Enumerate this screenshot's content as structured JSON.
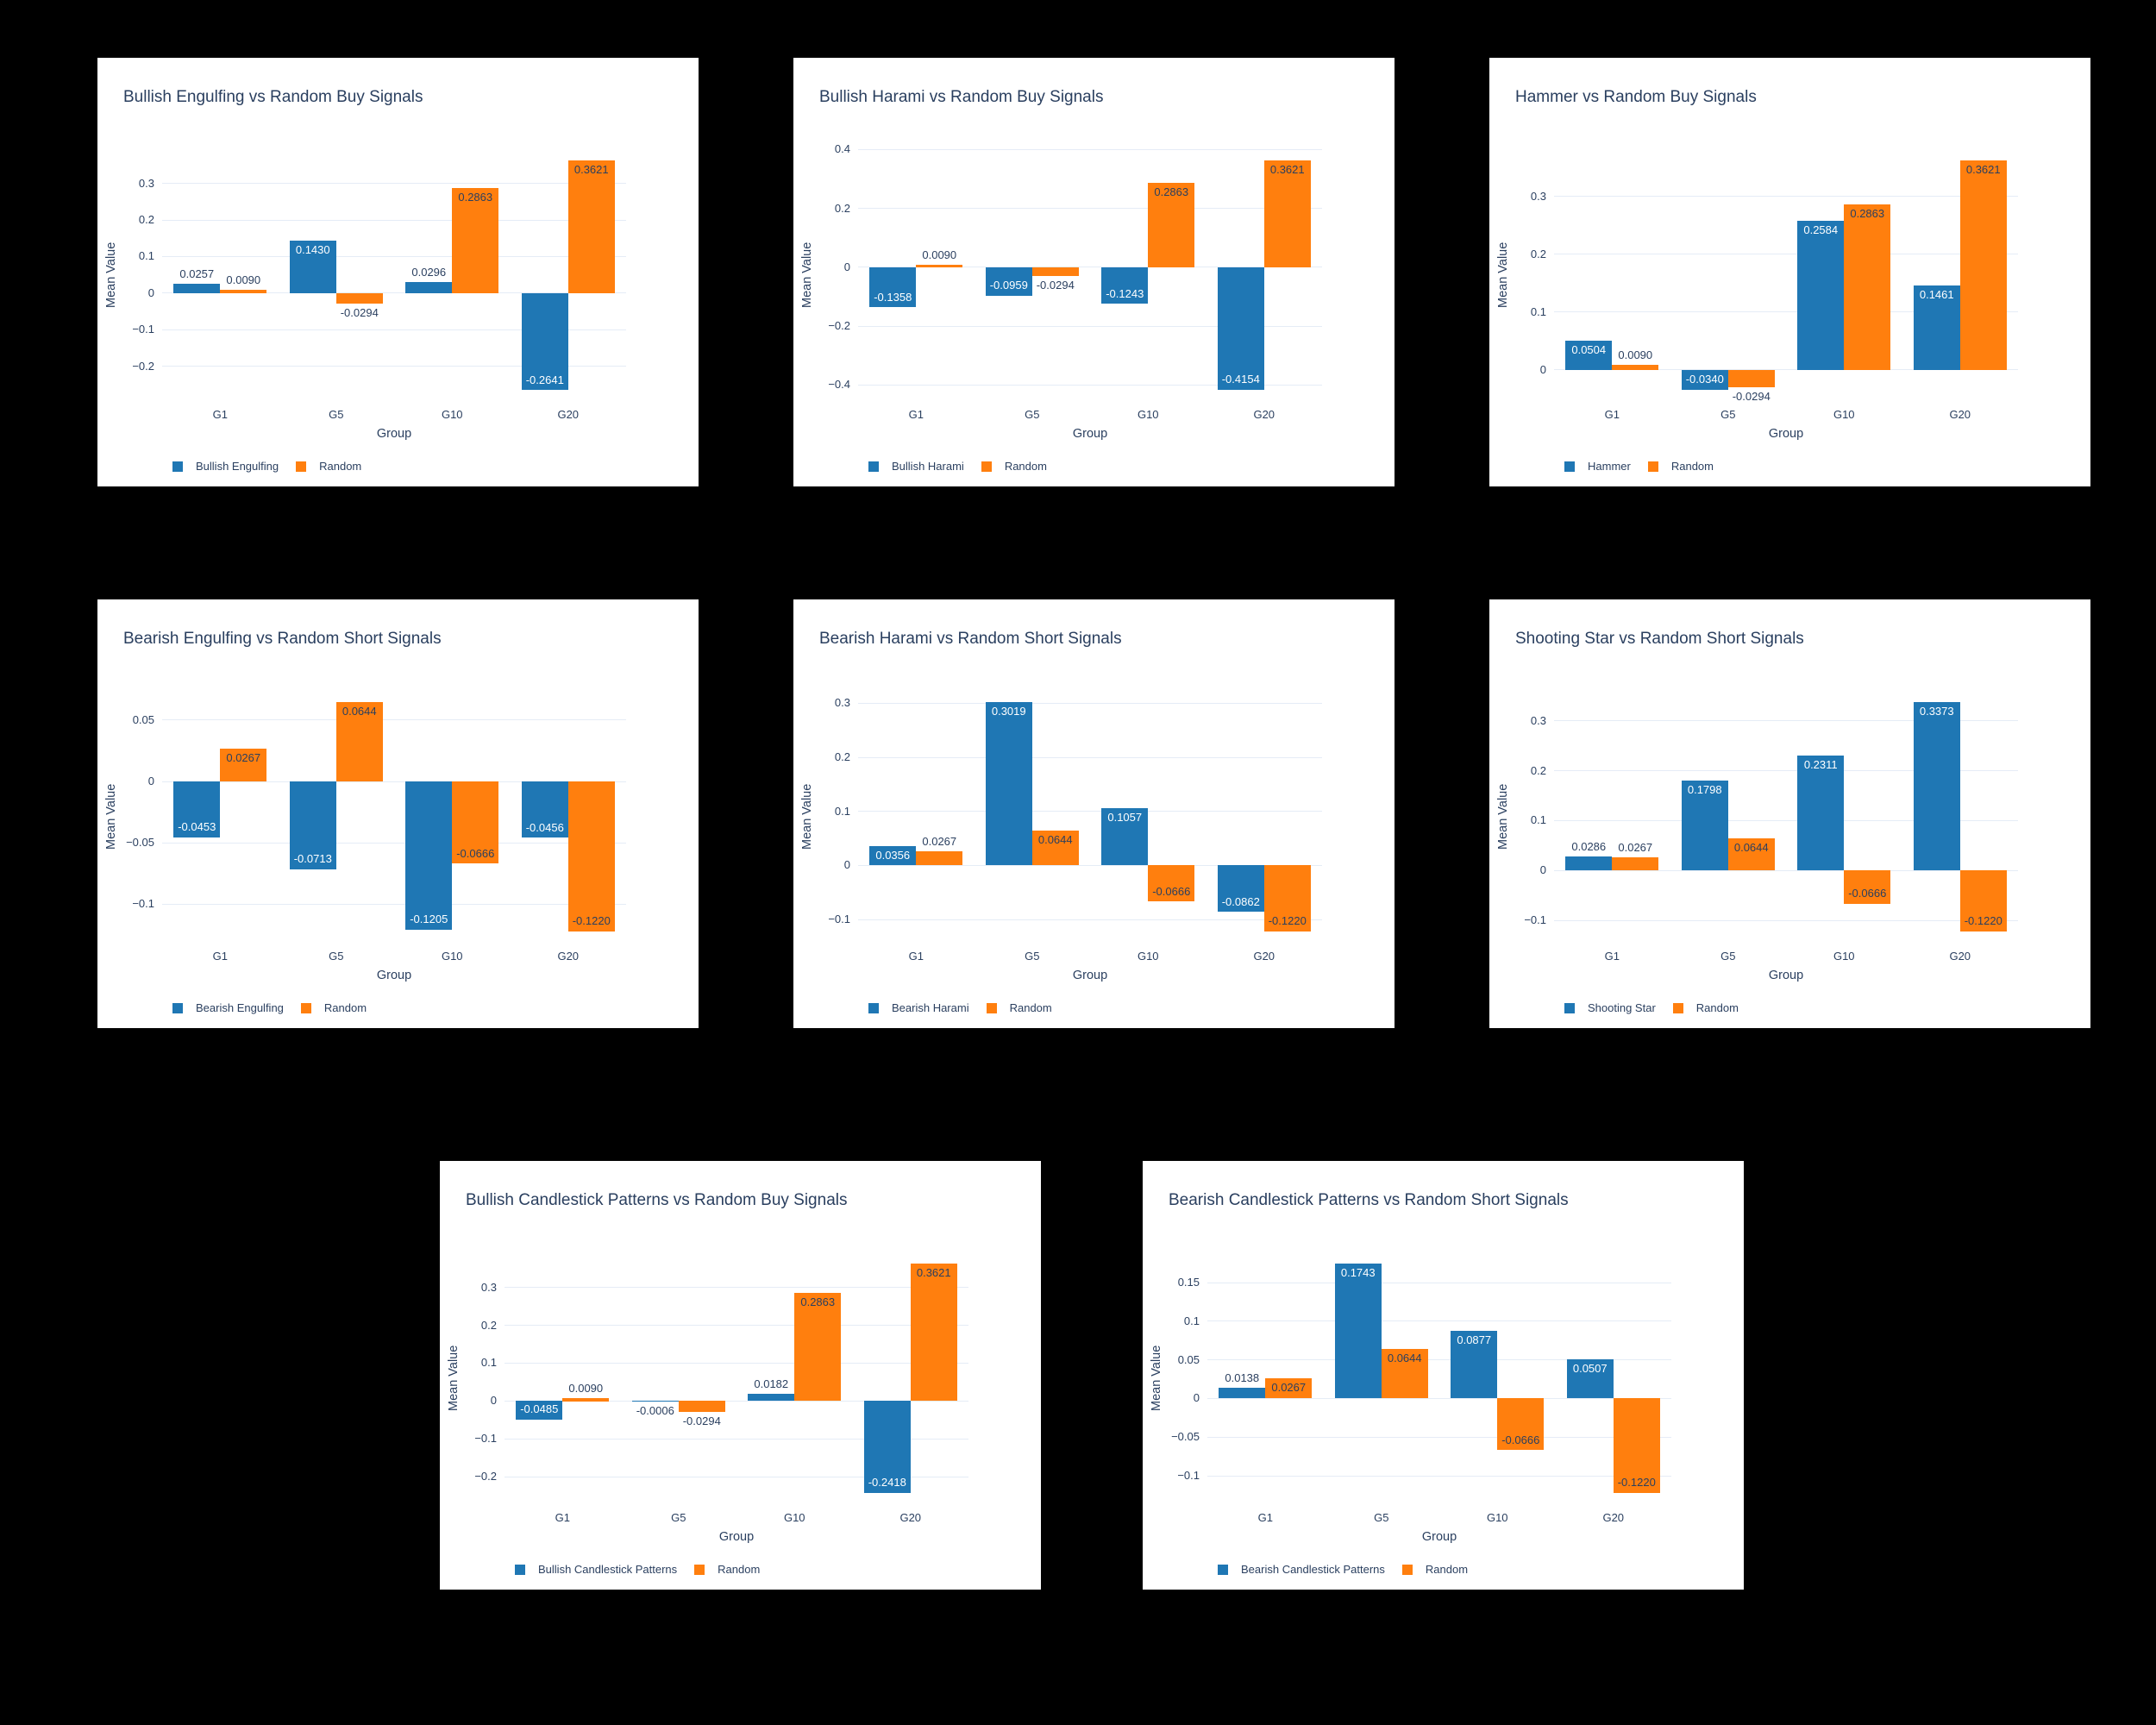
{
  "colors": {
    "series_blue": "#1f77b4",
    "series_orange": "#ff7f0e",
    "text": "#2a3f5f",
    "grid": "#e5ecf6",
    "card_background": "#ffffff",
    "page_background": "#000000",
    "inside_label_on_blue": "#ffffff"
  },
  "axes": {
    "x_title": "Group",
    "y_title": "Mean Value",
    "categories": [
      "G1",
      "G5",
      "G10",
      "G20"
    ]
  },
  "chart_data": [
    {
      "type": "bar",
      "title": "Bullish Engulfing vs Random Buy Signals",
      "xlabel": "Group",
      "ylabel": "Mean Value",
      "categories": [
        "G1",
        "G5",
        "G10",
        "G20"
      ],
      "series": [
        {
          "name": "Bullish Engulfing",
          "color": "#1f77b4",
          "values": [
            0.0257,
            0.143,
            0.0296,
            -0.2641
          ],
          "labels": [
            "0.0257",
            "0.1430",
            "0.0296",
            "-0.2641"
          ],
          "label_pos": [
            "out",
            "in",
            "out",
            "in"
          ],
          "label_rot": [
            false,
            false,
            false,
            false
          ]
        },
        {
          "name": "Random",
          "color": "#ff7f0e",
          "values": [
            0.009,
            -0.0294,
            0.2863,
            0.3621
          ],
          "labels": [
            "0.0090",
            "-0.0294",
            "0.2863",
            "0.3621"
          ],
          "label_pos": [
            "out",
            "out",
            "in",
            "in"
          ],
          "label_rot": [
            false,
            false,
            false,
            false
          ]
        }
      ],
      "y_ticks": [
        -0.2,
        -0.1,
        0,
        0.1,
        0.2,
        0.3
      ],
      "y_tick_labels": [
        "−0.2",
        "−0.1",
        "0",
        "0.1",
        "0.2",
        "0.3"
      ],
      "legend_position": "bottom-left",
      "grid": true
    },
    {
      "type": "bar",
      "title": "Bullish Harami vs Random Buy Signals",
      "xlabel": "Group",
      "ylabel": "Mean Value",
      "categories": [
        "G1",
        "G5",
        "G10",
        "G20"
      ],
      "series": [
        {
          "name": "Bullish Harami",
          "color": "#1f77b4",
          "values": [
            -0.1358,
            -0.0959,
            -0.1243,
            -0.4154
          ],
          "labels": [
            "-0.1358",
            "-0.0959",
            "-0.1243",
            "-0.4154"
          ],
          "label_pos": [
            "in",
            "in",
            "in",
            "in"
          ],
          "label_rot": [
            false,
            false,
            false,
            true
          ]
        },
        {
          "name": "Random",
          "color": "#ff7f0e",
          "values": [
            0.009,
            -0.0294,
            0.2863,
            0.3621
          ],
          "labels": [
            "0.0090",
            "-0.0294",
            "0.2863",
            "0.3621"
          ],
          "label_pos": [
            "out",
            "out",
            "in",
            "in"
          ],
          "label_rot": [
            false,
            false,
            false,
            false
          ]
        }
      ],
      "y_ticks": [
        -0.4,
        -0.2,
        0,
        0.2,
        0.4
      ],
      "y_tick_labels": [
        "−0.4",
        "−0.2",
        "0",
        "0.2",
        "0.4"
      ],
      "legend_position": "bottom-left",
      "grid": true
    },
    {
      "type": "bar",
      "title": "Hammer vs Random Buy Signals",
      "xlabel": "Group",
      "ylabel": "Mean Value",
      "categories": [
        "G1",
        "G5",
        "G10",
        "G20"
      ],
      "series": [
        {
          "name": "Hammer",
          "color": "#1f77b4",
          "values": [
            0.0504,
            -0.034,
            0.2584,
            0.1461
          ],
          "labels": [
            "0.0504",
            "-0.0340",
            "0.2584",
            "0.1461"
          ],
          "label_pos": [
            "in",
            "in",
            "in",
            "in"
          ],
          "label_rot": [
            false,
            false,
            false,
            false
          ]
        },
        {
          "name": "Random",
          "color": "#ff7f0e",
          "values": [
            0.009,
            -0.0294,
            0.2863,
            0.3621
          ],
          "labels": [
            "0.0090",
            "-0.0294",
            "0.2863",
            "0.3621"
          ],
          "label_pos": [
            "out",
            "out",
            "in",
            "in"
          ],
          "label_rot": [
            false,
            false,
            false,
            false
          ]
        }
      ],
      "y_ticks": [
        0,
        0.1,
        0.2,
        0.3
      ],
      "y_tick_labels": [
        "0",
        "0.1",
        "0.2",
        "0.3"
      ],
      "legend_position": "bottom-left",
      "grid": true
    },
    {
      "type": "bar",
      "title": "Bearish Engulfing vs Random Short Signals",
      "xlabel": "Group",
      "ylabel": "Mean Value",
      "categories": [
        "G1",
        "G5",
        "G10",
        "G20"
      ],
      "series": [
        {
          "name": "Bearish Engulfing",
          "color": "#1f77b4",
          "values": [
            -0.0453,
            -0.0713,
            -0.1205,
            -0.0456
          ],
          "labels": [
            "-0.0453",
            "-0.0713",
            "-0.1205",
            "-0.0456"
          ],
          "label_pos": [
            "in",
            "in",
            "in",
            "in"
          ],
          "label_rot": [
            false,
            false,
            true,
            true
          ]
        },
        {
          "name": "Random",
          "color": "#ff7f0e",
          "values": [
            0.0267,
            0.0644,
            -0.0666,
            -0.122
          ],
          "labels": [
            "0.0267",
            "0.0644",
            "-0.0666",
            "-0.1220"
          ],
          "label_pos": [
            "in",
            "in",
            "in",
            "in"
          ],
          "label_rot": [
            false,
            false,
            true,
            true
          ]
        }
      ],
      "y_ticks": [
        -0.1,
        -0.05,
        0,
        0.05
      ],
      "y_tick_labels": [
        "−0.1",
        "−0.05",
        "0",
        "0.05"
      ],
      "legend_position": "bottom-left",
      "grid": true
    },
    {
      "type": "bar",
      "title": "Bearish Harami vs Random Short Signals",
      "xlabel": "Group",
      "ylabel": "Mean Value",
      "categories": [
        "G1",
        "G5",
        "G10",
        "G20"
      ],
      "series": [
        {
          "name": "Bearish Harami",
          "color": "#1f77b4",
          "values": [
            0.0356,
            0.3019,
            0.1057,
            -0.0862
          ],
          "labels": [
            "0.0356",
            "0.3019",
            "0.1057",
            "-0.0862"
          ],
          "label_pos": [
            "in",
            "in",
            "in",
            "in"
          ],
          "label_rot": [
            false,
            false,
            false,
            true
          ]
        },
        {
          "name": "Random",
          "color": "#ff7f0e",
          "values": [
            0.0267,
            0.0644,
            -0.0666,
            -0.122
          ],
          "labels": [
            "0.0267",
            "0.0644",
            "-0.0666",
            "-0.1220"
          ],
          "label_pos": [
            "out",
            "in",
            "in",
            "in"
          ],
          "label_rot": [
            false,
            false,
            false,
            true
          ]
        }
      ],
      "y_ticks": [
        -0.1,
        0,
        0.1,
        0.2,
        0.3
      ],
      "y_tick_labels": [
        "−0.1",
        "0",
        "0.1",
        "0.2",
        "0.3"
      ],
      "legend_position": "bottom-left",
      "grid": true
    },
    {
      "type": "bar",
      "title": "Shooting Star vs Random Short Signals",
      "xlabel": "Group",
      "ylabel": "Mean Value",
      "categories": [
        "G1",
        "G5",
        "G10",
        "G20"
      ],
      "series": [
        {
          "name": "Shooting Star",
          "color": "#1f77b4",
          "values": [
            0.0286,
            0.1798,
            0.2311,
            0.3373
          ],
          "labels": [
            "0.0286",
            "0.1798",
            "0.2311",
            "0.3373"
          ],
          "label_pos": [
            "out",
            "in",
            "in",
            "in"
          ],
          "label_rot": [
            false,
            false,
            false,
            false
          ]
        },
        {
          "name": "Random",
          "color": "#ff7f0e",
          "values": [
            0.0267,
            0.0644,
            -0.0666,
            -0.122
          ],
          "labels": [
            "0.0267",
            "0.0644",
            "-0.0666",
            "-0.1220"
          ],
          "label_pos": [
            "out",
            "in",
            "in",
            "in"
          ],
          "label_rot": [
            false,
            false,
            false,
            true
          ]
        }
      ],
      "y_ticks": [
        -0.1,
        0,
        0.1,
        0.2,
        0.3
      ],
      "y_tick_labels": [
        "−0.1",
        "0",
        "0.1",
        "0.2",
        "0.3"
      ],
      "legend_position": "bottom-left",
      "grid": true
    },
    {
      "type": "bar",
      "title": "Bullish Candlestick Patterns vs Random Buy Signals",
      "xlabel": "Group",
      "ylabel": "Mean Value",
      "categories": [
        "G1",
        "G5",
        "G10",
        "G20"
      ],
      "series": [
        {
          "name": "Bullish Candlestick Patterns",
          "color": "#1f77b4",
          "values": [
            -0.0485,
            -0.0006,
            0.0182,
            -0.2418
          ],
          "labels": [
            "-0.0485",
            "-0.0006",
            "0.0182",
            "-0.2418"
          ],
          "label_pos": [
            "in",
            "out",
            "out",
            "in"
          ],
          "label_rot": [
            false,
            false,
            false,
            true
          ]
        },
        {
          "name": "Random",
          "color": "#ff7f0e",
          "values": [
            0.009,
            -0.0294,
            0.2863,
            0.3621
          ],
          "labels": [
            "0.0090",
            "-0.0294",
            "0.2863",
            "0.3621"
          ],
          "label_pos": [
            "out",
            "out",
            "in",
            "in"
          ],
          "label_rot": [
            false,
            false,
            false,
            false
          ]
        }
      ],
      "y_ticks": [
        -0.2,
        -0.1,
        0,
        0.1,
        0.2,
        0.3
      ],
      "y_tick_labels": [
        "−0.2",
        "−0.1",
        "0",
        "0.1",
        "0.2",
        "0.3"
      ],
      "legend_position": "bottom-left",
      "grid": true
    },
    {
      "type": "bar",
      "title": "Bearish Candlestick Patterns vs Random Short Signals",
      "xlabel": "Group",
      "ylabel": "Mean Value",
      "categories": [
        "G1",
        "G5",
        "G10",
        "G20"
      ],
      "series": [
        {
          "name": "Bearish Candlestick Patterns",
          "color": "#1f77b4",
          "values": [
            0.0138,
            0.1743,
            0.0877,
            0.0507
          ],
          "labels": [
            "0.0138",
            "0.1743",
            "0.0877",
            "0.0507"
          ],
          "label_pos": [
            "out",
            "in",
            "in",
            "in"
          ],
          "label_rot": [
            false,
            false,
            false,
            false
          ]
        },
        {
          "name": "Random",
          "color": "#ff7f0e",
          "values": [
            0.0267,
            0.0644,
            -0.0666,
            -0.122
          ],
          "labels": [
            "0.0267",
            "0.0644",
            "-0.0666",
            "-0.1220"
          ],
          "label_pos": [
            "in",
            "in",
            "in",
            "in"
          ],
          "label_rot": [
            false,
            false,
            true,
            true
          ]
        }
      ],
      "y_ticks": [
        -0.1,
        -0.05,
        0,
        0.05,
        0.1,
        0.15
      ],
      "y_tick_labels": [
        "−0.1",
        "−0.05",
        "0",
        "0.05",
        "0.1",
        "0.15"
      ],
      "legend_position": "bottom-left",
      "grid": true
    }
  ]
}
